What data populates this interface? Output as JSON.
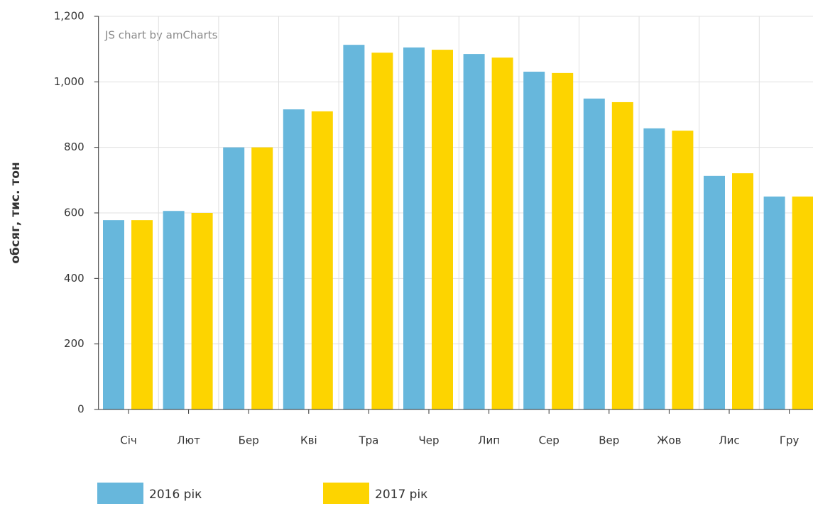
{
  "chart_data": {
    "type": "bar",
    "credit": "JS chart by amCharts",
    "y_label": "обсяг, тис. тон",
    "categories": [
      "Січ",
      "Лют",
      "Бер",
      "Кві",
      "Тра",
      "Чер",
      "Лип",
      "Сер",
      "Вер",
      "Жов",
      "Лис",
      "Гру"
    ],
    "series": [
      {
        "name": "2016 рік",
        "color": "#67b7dc",
        "values": [
          578,
          606,
          800,
          916,
          1113,
          1105,
          1085,
          1031,
          949,
          858,
          713,
          650
        ]
      },
      {
        "name": "2017 рік",
        "color": "#fdd400",
        "values": [
          578,
          600,
          800,
          910,
          1089,
          1098,
          1074,
          1027,
          938,
          851,
          721,
          650
        ]
      }
    ],
    "ylim": [
      0,
      1200
    ],
    "yticks": [
      0,
      200,
      400,
      600,
      800,
      {
        "value": 1000,
        "label": "1,000"
      },
      {
        "value": 1200,
        "label": "1,200"
      }
    ],
    "grid": true,
    "legend": "bottom"
  }
}
